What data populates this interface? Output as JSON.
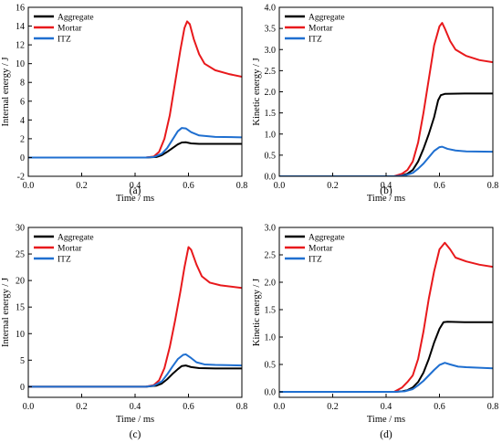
{
  "chart_data": [
    {
      "type": "line",
      "caption": "(a)",
      "xlabel": "Time / ms",
      "ylabel": "Internal energy / J",
      "xlim": [
        0.0,
        0.8
      ],
      "ylim": [
        -2,
        16
      ],
      "xticks": [
        "0.0",
        "0.2",
        "0.4",
        "0.6",
        "0.8"
      ],
      "yticks": [
        "-2",
        "0",
        "2",
        "4",
        "6",
        "8",
        "10",
        "12",
        "14",
        "16"
      ],
      "xtick_values": [
        0.0,
        0.2,
        0.4,
        0.6,
        0.8
      ],
      "ytick_values": [
        -2,
        0,
        2,
        4,
        6,
        8,
        10,
        12,
        14,
        16
      ],
      "legend": "top-left",
      "grid": false,
      "series": [
        {
          "name": "Aggregate",
          "color": "#000000",
          "points": [
            [
              0,
              0
            ],
            [
              0.44,
              0
            ],
            [
              0.48,
              0.05
            ],
            [
              0.5,
              0.25
            ],
            [
              0.52,
              0.6
            ],
            [
              0.54,
              1.0
            ],
            [
              0.56,
              1.4
            ],
            [
              0.575,
              1.6
            ],
            [
              0.59,
              1.62
            ],
            [
              0.61,
              1.5
            ],
            [
              0.64,
              1.45
            ],
            [
              0.7,
              1.45
            ],
            [
              0.8,
              1.45
            ]
          ]
        },
        {
          "name": "Mortar",
          "color": "#e8191c",
          "points": [
            [
              0,
              0
            ],
            [
              0.44,
              0
            ],
            [
              0.47,
              0.1
            ],
            [
              0.49,
              0.6
            ],
            [
              0.51,
              2.0
            ],
            [
              0.53,
              4.5
            ],
            [
              0.55,
              8.0
            ],
            [
              0.57,
              11.5
            ],
            [
              0.585,
              13.8
            ],
            [
              0.595,
              14.5
            ],
            [
              0.605,
              14.2
            ],
            [
              0.62,
              12.6
            ],
            [
              0.64,
              11.0
            ],
            [
              0.66,
              10.0
            ],
            [
              0.7,
              9.3
            ],
            [
              0.75,
              8.9
            ],
            [
              0.8,
              8.6
            ]
          ]
        },
        {
          "name": "ITZ",
          "color": "#1f6fd0",
          "points": [
            [
              0,
              0
            ],
            [
              0.44,
              0
            ],
            [
              0.47,
              0.05
            ],
            [
              0.5,
              0.4
            ],
            [
              0.52,
              1.0
            ],
            [
              0.54,
              1.9
            ],
            [
              0.56,
              2.8
            ],
            [
              0.575,
              3.15
            ],
            [
              0.59,
              3.1
            ],
            [
              0.61,
              2.7
            ],
            [
              0.64,
              2.35
            ],
            [
              0.7,
              2.2
            ],
            [
              0.8,
              2.15
            ]
          ]
        }
      ]
    },
    {
      "type": "line",
      "caption": "(b)",
      "xlabel": "Time / ms",
      "ylabel": "Kinetic energy / J",
      "xlim": [
        0.0,
        0.8
      ],
      "ylim": [
        0.0,
        4.0
      ],
      "xticks": [
        "0.0",
        "0.2",
        "0.4",
        "0.6",
        "0.8"
      ],
      "yticks": [
        "0.0",
        "0.5",
        "1.0",
        "1.5",
        "2.0",
        "2.5",
        "3.0",
        "3.5",
        "4.0"
      ],
      "xtick_values": [
        0.0,
        0.2,
        0.4,
        0.6,
        0.8
      ],
      "ytick_values": [
        0.0,
        0.5,
        1.0,
        1.5,
        2.0,
        2.5,
        3.0,
        3.5,
        4.0
      ],
      "legend": "top-left",
      "grid": false,
      "series": [
        {
          "name": "Aggregate",
          "color": "#000000",
          "points": [
            [
              0,
              0
            ],
            [
              0.43,
              0
            ],
            [
              0.46,
              0.02
            ],
            [
              0.48,
              0.06
            ],
            [
              0.5,
              0.15
            ],
            [
              0.52,
              0.35
            ],
            [
              0.54,
              0.65
            ],
            [
              0.56,
              1.0
            ],
            [
              0.58,
              1.4
            ],
            [
              0.595,
              1.8
            ],
            [
              0.605,
              1.92
            ],
            [
              0.62,
              1.95
            ],
            [
              0.7,
              1.96
            ],
            [
              0.8,
              1.96
            ]
          ]
        },
        {
          "name": "Mortar",
          "color": "#e8191c",
          "points": [
            [
              0,
              0
            ],
            [
              0.43,
              0
            ],
            [
              0.46,
              0.06
            ],
            [
              0.48,
              0.15
            ],
            [
              0.5,
              0.35
            ],
            [
              0.52,
              0.8
            ],
            [
              0.54,
              1.5
            ],
            [
              0.56,
              2.3
            ],
            [
              0.58,
              3.1
            ],
            [
              0.6,
              3.55
            ],
            [
              0.61,
              3.63
            ],
            [
              0.62,
              3.5
            ],
            [
              0.64,
              3.2
            ],
            [
              0.66,
              3.0
            ],
            [
              0.7,
              2.85
            ],
            [
              0.75,
              2.75
            ],
            [
              0.8,
              2.7
            ]
          ]
        },
        {
          "name": "ITZ",
          "color": "#1f6fd0",
          "points": [
            [
              0,
              0
            ],
            [
              0.43,
              0
            ],
            [
              0.47,
              0.02
            ],
            [
              0.5,
              0.08
            ],
            [
              0.52,
              0.18
            ],
            [
              0.54,
              0.3
            ],
            [
              0.56,
              0.45
            ],
            [
              0.58,
              0.6
            ],
            [
              0.6,
              0.69
            ],
            [
              0.61,
              0.7
            ],
            [
              0.63,
              0.65
            ],
            [
              0.66,
              0.61
            ],
            [
              0.7,
              0.59
            ],
            [
              0.8,
              0.58
            ]
          ]
        }
      ]
    },
    {
      "type": "line",
      "caption": "(c)",
      "xlabel": "Time / ms",
      "ylabel": "Internal energy / J",
      "xlim": [
        0.0,
        0.8
      ],
      "ylim": [
        -2,
        30
      ],
      "xticks": [
        "0.0",
        "0.2",
        "0.4",
        "0.6",
        "0.8"
      ],
      "yticks": [
        "0",
        "5",
        "10",
        "15",
        "20",
        "25",
        "30"
      ],
      "xtick_values": [
        0.0,
        0.2,
        0.4,
        0.6,
        0.8
      ],
      "ytick_values": [
        0,
        5,
        10,
        15,
        20,
        25,
        30
      ],
      "legend": "top-left",
      "grid": false,
      "series": [
        {
          "name": "Aggregate",
          "color": "#000000",
          "points": [
            [
              0,
              0
            ],
            [
              0.44,
              0
            ],
            [
              0.48,
              0.2
            ],
            [
              0.5,
              0.6
            ],
            [
              0.52,
              1.4
            ],
            [
              0.54,
              2.4
            ],
            [
              0.56,
              3.3
            ],
            [
              0.575,
              3.9
            ],
            [
              0.59,
              4.0
            ],
            [
              0.61,
              3.7
            ],
            [
              0.64,
              3.5
            ],
            [
              0.7,
              3.45
            ],
            [
              0.8,
              3.45
            ]
          ]
        },
        {
          "name": "Mortar",
          "color": "#e8191c",
          "points": [
            [
              0,
              0
            ],
            [
              0.44,
              0
            ],
            [
              0.47,
              0.3
            ],
            [
              0.49,
              1.2
            ],
            [
              0.51,
              3.5
            ],
            [
              0.53,
              7.5
            ],
            [
              0.55,
              12.5
            ],
            [
              0.57,
              18.0
            ],
            [
              0.585,
              22.5
            ],
            [
              0.6,
              26.3
            ],
            [
              0.61,
              25.8
            ],
            [
              0.63,
              23.0
            ],
            [
              0.65,
              20.8
            ],
            [
              0.68,
              19.6
            ],
            [
              0.72,
              19.1
            ],
            [
              0.8,
              18.6
            ]
          ]
        },
        {
          "name": "ITZ",
          "color": "#1f6fd0",
          "points": [
            [
              0,
              0
            ],
            [
              0.44,
              0
            ],
            [
              0.47,
              0.2
            ],
            [
              0.5,
              1.0
            ],
            [
              0.52,
              2.3
            ],
            [
              0.54,
              3.8
            ],
            [
              0.56,
              5.2
            ],
            [
              0.58,
              6.0
            ],
            [
              0.59,
              6.1
            ],
            [
              0.61,
              5.4
            ],
            [
              0.63,
              4.6
            ],
            [
              0.66,
              4.2
            ],
            [
              0.7,
              4.1
            ],
            [
              0.8,
              4.0
            ]
          ]
        }
      ]
    },
    {
      "type": "line",
      "caption": "(d)",
      "xlabel": "Time / ms",
      "ylabel": "Kinetic energy / J",
      "xlim": [
        0.0,
        0.8
      ],
      "ylim": [
        -0.1,
        3.0
      ],
      "xticks": [
        "0.0",
        "0.2",
        "0.4",
        "0.6",
        "0.8"
      ],
      "yticks": [
        "0.0",
        "0.5",
        "1.0",
        "1.5",
        "2.0",
        "2.5",
        "3.0"
      ],
      "xtick_values": [
        0.0,
        0.2,
        0.4,
        0.6,
        0.8
      ],
      "ytick_values": [
        0.0,
        0.5,
        1.0,
        1.5,
        2.0,
        2.5,
        3.0
      ],
      "legend": "top-left",
      "grid": false,
      "series": [
        {
          "name": "Aggregate",
          "color": "#000000",
          "points": [
            [
              0,
              0
            ],
            [
              0.43,
              0
            ],
            [
              0.46,
              0.01
            ],
            [
              0.48,
              0.03
            ],
            [
              0.5,
              0.08
            ],
            [
              0.52,
              0.18
            ],
            [
              0.54,
              0.35
            ],
            [
              0.56,
              0.6
            ],
            [
              0.58,
              0.9
            ],
            [
              0.6,
              1.15
            ],
            [
              0.615,
              1.27
            ],
            [
              0.63,
              1.28
            ],
            [
              0.7,
              1.27
            ],
            [
              0.8,
              1.27
            ]
          ]
        },
        {
          "name": "Mortar",
          "color": "#e8191c",
          "points": [
            [
              0,
              0
            ],
            [
              0.43,
              0
            ],
            [
              0.46,
              0.08
            ],
            [
              0.48,
              0.18
            ],
            [
              0.5,
              0.3
            ],
            [
              0.52,
              0.6
            ],
            [
              0.54,
              1.1
            ],
            [
              0.56,
              1.7
            ],
            [
              0.58,
              2.2
            ],
            [
              0.6,
              2.6
            ],
            [
              0.62,
              2.72
            ],
            [
              0.64,
              2.6
            ],
            [
              0.66,
              2.45
            ],
            [
              0.7,
              2.38
            ],
            [
              0.75,
              2.32
            ],
            [
              0.8,
              2.28
            ]
          ]
        },
        {
          "name": "ITZ",
          "color": "#1f6fd0",
          "points": [
            [
              0,
              0
            ],
            [
              0.43,
              0
            ],
            [
              0.47,
              0.01
            ],
            [
              0.5,
              0.05
            ],
            [
              0.52,
              0.12
            ],
            [
              0.54,
              0.2
            ],
            [
              0.56,
              0.3
            ],
            [
              0.58,
              0.4
            ],
            [
              0.6,
              0.49
            ],
            [
              0.62,
              0.53
            ],
            [
              0.64,
              0.5
            ],
            [
              0.67,
              0.46
            ],
            [
              0.7,
              0.45
            ],
            [
              0.8,
              0.43
            ]
          ]
        }
      ]
    }
  ]
}
